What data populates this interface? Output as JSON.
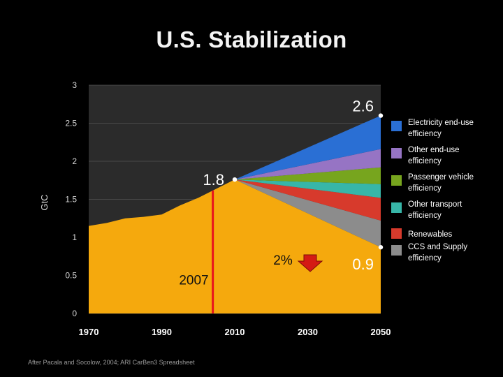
{
  "title": "U.S. Stabilization",
  "source": "After Pacala and Socolow, 2004; ARI CarBen3 Spreadsheet",
  "colors": {
    "background": "#000000",
    "plot_background": "#2b2b2b",
    "gridline": "#555555",
    "history": "#f5a90d",
    "marker_line": "#e8141c",
    "arrow": "#d41b14"
  },
  "chart_data": {
    "type": "area",
    "ylabel": "GtC",
    "xlabel": "",
    "xlim": [
      1970,
      2050
    ],
    "ylim": [
      0,
      3
    ],
    "x_ticks": [
      {
        "value": 1970,
        "label": "1970"
      },
      {
        "value": 1990,
        "label": "1990"
      },
      {
        "value": 2010,
        "label": "2010"
      },
      {
        "value": 2030,
        "label": "2030"
      },
      {
        "value": 2050,
        "label": "2050"
      }
    ],
    "y_ticks": [
      {
        "value": 0,
        "label": "0"
      },
      {
        "value": 0.5,
        "label": "0.5"
      },
      {
        "value": 1,
        "label": "1"
      },
      {
        "value": 1.5,
        "label": "1.5"
      },
      {
        "value": 2,
        "label": "2"
      },
      {
        "value": 2.5,
        "label": "2.5"
      },
      {
        "value": 3,
        "label": "3"
      }
    ],
    "grid": true,
    "emissions_history": [
      {
        "x": 1970,
        "y": 1.15
      },
      {
        "x": 1975,
        "y": 1.19
      },
      {
        "x": 1980,
        "y": 1.25
      },
      {
        "x": 1985,
        "y": 1.27
      },
      {
        "x": 1990,
        "y": 1.3
      },
      {
        "x": 1995,
        "y": 1.42
      },
      {
        "x": 2000,
        "y": 1.52
      },
      {
        "x": 2005,
        "y": 1.64
      },
      {
        "x": 2010,
        "y": 1.76
      }
    ],
    "stabilization_path": [
      {
        "x": 2010,
        "y": 1.76
      },
      {
        "x": 2050,
        "y": 0.87
      }
    ],
    "wedges": [
      {
        "name": "Electricity end-use efficiency",
        "color": "#2a6fd4",
        "value_2050": 0.44
      },
      {
        "name": "Other end-use efficiency",
        "color": "#9674c4",
        "value_2050": 0.24
      },
      {
        "name": "Passenger vehicle efficiency",
        "color": "#77a51e",
        "value_2050": 0.22
      },
      {
        "name": "Other transport efficiency",
        "color": "#37b6a8",
        "value_2050": 0.18
      },
      {
        "name": "Renewables",
        "color": "#d73a2c",
        "value_2050": 0.3
      },
      {
        "name": "CCS and Supply efficiency",
        "color": "#8c8c8c",
        "value_2050": 0.35
      }
    ],
    "annotations": {
      "peak_2050": {
        "label": "2.6",
        "x": 2050,
        "y": 2.6
      },
      "current": {
        "label": "1.8",
        "x": 2010,
        "y": 1.76
      },
      "target_2050": {
        "label": "0.9",
        "x": 2050,
        "y": 0.87
      },
      "year_marker": {
        "label": "2007",
        "x": 2004
      },
      "reduction_rate": {
        "label": "2%"
      }
    },
    "legend_position": "right"
  }
}
